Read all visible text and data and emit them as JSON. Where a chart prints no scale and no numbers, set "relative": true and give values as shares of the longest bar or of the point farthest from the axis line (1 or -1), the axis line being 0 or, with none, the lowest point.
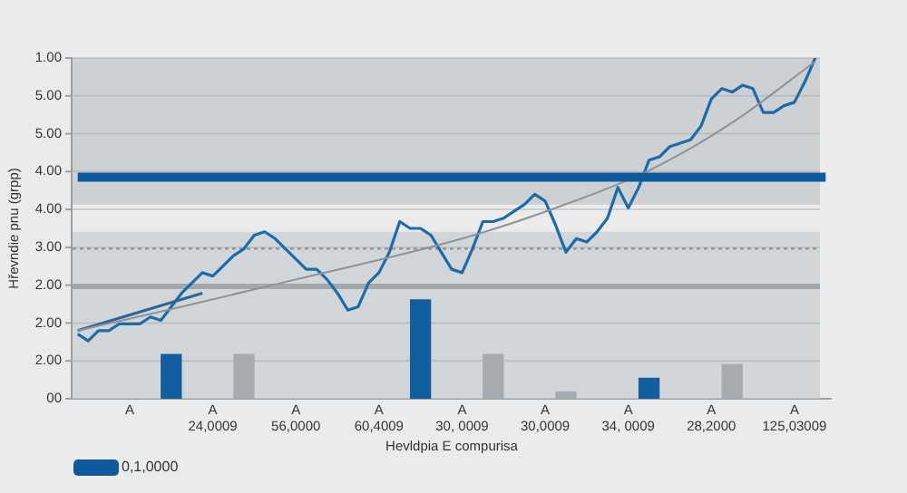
{
  "chart_data": {
    "type": "line",
    "relative": true,
    "xlabel": "Hevldpia E compurisa",
    "ylabel": "Hřevndie pnu (grpp)",
    "annotations": [
      "1.00",
      "5.00",
      "5.00",
      "4.00",
      "4.00",
      "3.00",
      "2.00",
      "2.00",
      "2.00",
      "00"
    ],
    "categories": [
      null,
      null,
      null,
      null,
      null,
      "A",
      null,
      null,
      null,
      null,
      null,
      null,
      null,
      "A\n24,0009",
      null,
      null,
      null,
      null,
      null,
      null,
      null,
      "A\n56,0000",
      null,
      null,
      null,
      null,
      null,
      null,
      null,
      "A\n60,4009",
      null,
      null,
      null,
      null,
      null,
      null,
      null,
      "A\n30, 0009",
      null,
      null,
      null,
      null,
      null,
      null,
      null,
      "A\n30,0009",
      null,
      null,
      null,
      null,
      null,
      null,
      null,
      "A\n34, 0009",
      null,
      null,
      null,
      null,
      null,
      null,
      null,
      "A\n28,2000",
      null,
      null,
      null,
      null,
      null,
      null,
      null,
      "A\n125,03009",
      null,
      null,
      null
    ],
    "grid": "y",
    "legend": "bottom left",
    "marker": "none",
    "line_style": "solid",
    "bands": [
      {
        "axis": "y",
        "from": 0.57,
        "to": 1,
        "color": "#cdd1d3"
      },
      {
        "axis": "y",
        "from": 0,
        "to": 0.49,
        "color": "#d2d6d8"
      }
    ],
    "ref_lines": [
      {
        "axis": "y",
        "value": 0.33,
        "color": "#a3a8ac"
      },
      {
        "axis": "y",
        "value": 0.44,
        "color": "#8a8f93",
        "line_style": "dotted"
      }
    ],
    "series": [
      {
        "type": "bar",
        "color": "#125f9f",
        "values": [
          null,
          null,
          null,
          null,
          null,
          null,
          null,
          null,
          null,
          0.13,
          null,
          null,
          null,
          null,
          null,
          null,
          null,
          null,
          null,
          null,
          null,
          null,
          null,
          null,
          null,
          null,
          null,
          null,
          null,
          null,
          null,
          null,
          null,
          0.29,
          null,
          null,
          null,
          null,
          null,
          null,
          null,
          null,
          null,
          null,
          null,
          null,
          null,
          null,
          null,
          null,
          null,
          null,
          null,
          null,
          null,
          0.06,
          null,
          null,
          null,
          null,
          null,
          null,
          null,
          null,
          null,
          null,
          null,
          null,
          null,
          null,
          null,
          null,
          null
        ]
      },
      {
        "type": "bar",
        "color": "#a6abb0",
        "values": [
          null,
          null,
          null,
          null,
          null,
          null,
          null,
          null,
          null,
          null,
          null,
          null,
          null,
          null,
          null,
          null,
          0.13,
          null,
          null,
          null,
          null,
          null,
          null,
          null,
          null,
          null,
          null,
          null,
          null,
          null,
          null,
          null,
          null,
          null,
          null,
          null,
          null,
          null,
          null,
          null,
          0.13,
          null,
          null,
          null,
          null,
          null,
          null,
          0.02,
          null,
          null,
          null,
          null,
          null,
          null,
          null,
          null,
          null,
          null,
          null,
          null,
          null,
          null,
          null,
          0.1,
          null,
          null,
          null,
          null,
          null,
          null,
          null,
          null,
          null
        ]
      },
      {
        "color": "#8e9397",
        "values": [
          0.2,
          null,
          null,
          null,
          null,
          null,
          null,
          null,
          null,
          null,
          0.27,
          null,
          null,
          null,
          null,
          null,
          null,
          null,
          null,
          null,
          null,
          0.35,
          null,
          null,
          null,
          null,
          null,
          null,
          null,
          null,
          null,
          null,
          null,
          null,
          null,
          null,
          null,
          0.47,
          null,
          null,
          null,
          null,
          null,
          null,
          null,
          null,
          0.56,
          null,
          null,
          null,
          null,
          null,
          null,
          null,
          null,
          0.67,
          null,
          null,
          null,
          null,
          null,
          null,
          null,
          0.81,
          null,
          null,
          null,
          null,
          null,
          null,
          null,
          0.99,
          null
        ]
      },
      {
        "color": "#2a679a",
        "values": [
          0.2,
          null,
          null,
          null,
          null,
          null,
          null,
          null,
          null,
          null,
          null,
          null,
          0.31,
          null,
          null,
          null,
          null,
          null,
          null,
          null,
          null,
          null,
          null,
          null,
          null,
          null,
          null,
          null,
          null,
          null,
          null,
          null,
          null,
          null,
          null,
          null,
          null,
          null,
          null,
          null,
          null,
          null,
          null,
          null,
          null,
          null,
          null,
          null,
          null,
          null,
          null,
          null,
          null,
          null,
          null,
          null,
          null,
          null,
          null,
          null,
          null,
          null,
          null,
          null,
          null,
          null,
          null,
          null,
          null,
          null,
          null,
          null,
          null
        ]
      },
      {
        "color": "#1b6cab",
        "values": [
          0.19,
          0.17,
          0.2,
          0.2,
          0.22,
          0.22,
          0.22,
          0.24,
          0.23,
          0.27,
          0.31,
          0.34,
          0.37,
          0.36,
          0.39,
          0.42,
          0.44,
          0.48,
          0.49,
          0.47,
          0.44,
          0.41,
          0.38,
          0.38,
          0.35,
          0.31,
          0.26,
          0.27,
          0.34,
          0.37,
          0.43,
          0.52,
          0.5,
          0.5,
          0.48,
          0.43,
          0.38,
          0.37,
          0.44,
          0.52,
          0.52,
          0.53,
          0.55,
          0.57,
          0.6,
          0.58,
          0.51,
          0.43,
          0.47,
          0.46,
          0.49,
          0.53,
          0.62,
          0.56,
          0.62,
          0.7,
          0.71,
          0.74,
          0.75,
          0.76,
          0.8,
          0.88,
          0.91,
          0.9,
          0.92,
          0.91,
          0.84,
          0.84,
          0.86,
          0.87,
          0.93,
          1,
          null
        ]
      },
      {
        "name": "0,1,0000",
        "color": "#0e5a9c",
        "values": [
          0.65,
          0.65,
          0.65,
          0.65,
          0.65,
          0.65,
          0.65,
          0.65,
          0.65,
          0.65,
          0.65,
          0.65,
          0.65,
          0.65,
          0.65,
          0.65,
          0.65,
          0.65,
          0.65,
          0.65,
          0.65,
          0.65,
          0.65,
          0.65,
          0.65,
          0.65,
          0.65,
          0.65,
          0.65,
          0.65,
          0.65,
          0.65,
          0.65,
          0.65,
          0.65,
          0.65,
          0.65,
          0.65,
          0.65,
          0.65,
          0.65,
          0.65,
          0.65,
          0.65,
          0.65,
          0.65,
          0.65,
          0.65,
          0.65,
          0.65,
          0.65,
          0.65,
          0.65,
          0.65,
          0.65,
          0.65,
          0.65,
          0.65,
          0.65,
          0.65,
          0.65,
          0.65,
          0.65,
          0.65,
          0.65,
          0.65,
          0.65,
          0.65,
          0.65,
          0.65,
          0.65,
          0.65,
          0.65
        ]
      }
    ]
  }
}
